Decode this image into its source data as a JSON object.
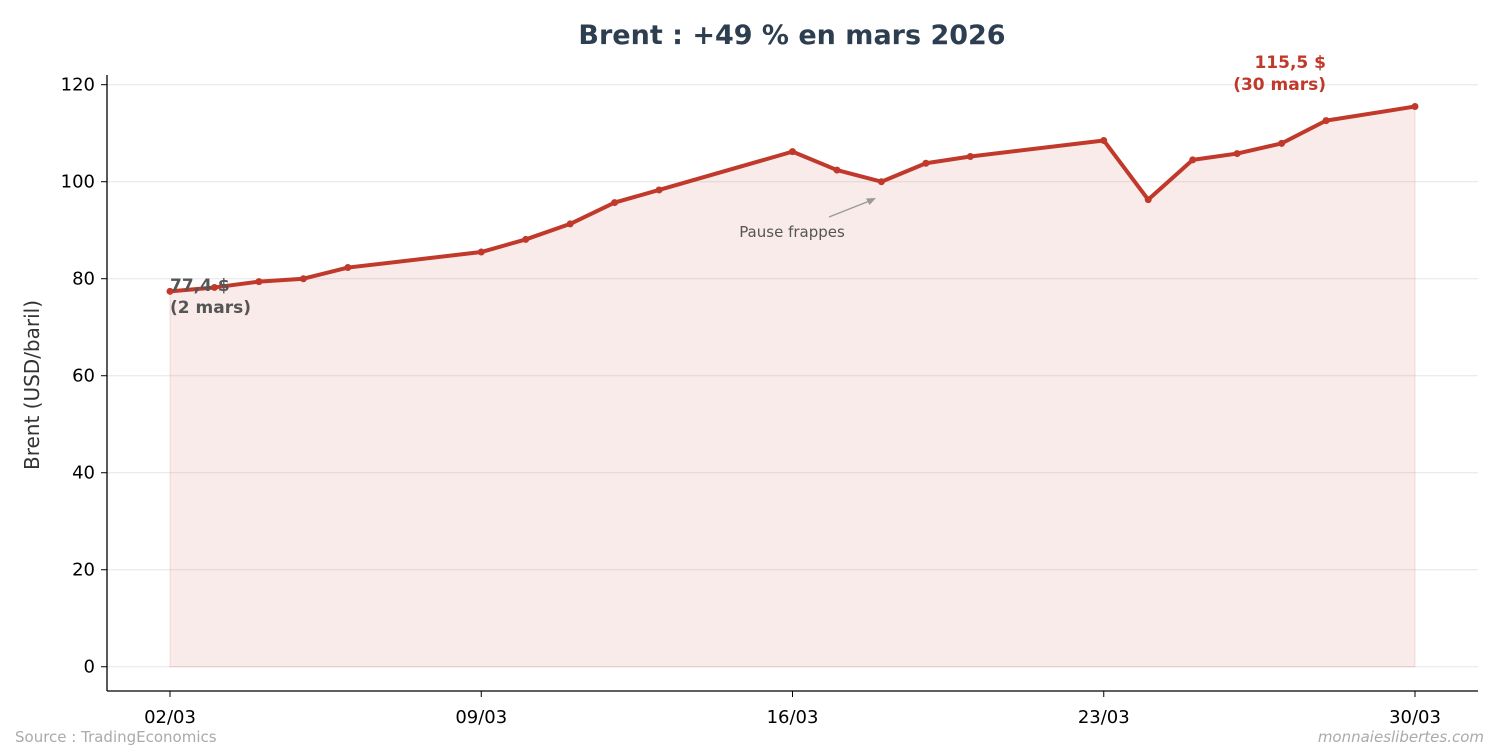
{
  "chart_data": {
    "type": "line",
    "title": "Brent : +49 % en mars 2026",
    "ylabel": "Brent (USD/baril)",
    "xlabel": "",
    "xlim": [
      "2026-03-02",
      "2026-03-30"
    ],
    "ylim": [
      -5,
      122
    ],
    "yticks": [
      0,
      20,
      40,
      60,
      80,
      100,
      120
    ],
    "xticks": [
      "2026-03-02",
      "2026-03-09",
      "2026-03-16",
      "2026-03-23",
      "2026-03-30"
    ],
    "xtick_labels": [
      "02/03",
      "09/03",
      "16/03",
      "23/03",
      "30/03"
    ],
    "grid": "horizontal",
    "fill_under": true,
    "series": [
      {
        "color": "#c0392b",
        "x": [
          "2026-03-02",
          "2026-03-03",
          "2026-03-04",
          "2026-03-05",
          "2026-03-06",
          "2026-03-09",
          "2026-03-10",
          "2026-03-11",
          "2026-03-12",
          "2026-03-13",
          "2026-03-16",
          "2026-03-17",
          "2026-03-18",
          "2026-03-19",
          "2026-03-20",
          "2026-03-23",
          "2026-03-24",
          "2026-03-25",
          "2026-03-26",
          "2026-03-27",
          "2026-03-28",
          "2026-03-30"
        ],
        "y": [
          77.4,
          78.2,
          79.4,
          80.0,
          82.3,
          85.5,
          88.1,
          91.3,
          95.7,
          98.3,
          106.2,
          102.4,
          100.0,
          103.8,
          105.2,
          108.5,
          96.3,
          104.5,
          105.8,
          107.9,
          112.6,
          115.5
        ]
      }
    ],
    "annotations": {
      "start": {
        "line1": "77,4 $",
        "line2": "(2 mars)"
      },
      "end": {
        "line1": "115,5 $",
        "line2": "(30 mars)"
      },
      "pause": {
        "text": "Pause frappes",
        "target_x": "2026-03-18",
        "target_y": 96
      }
    }
  },
  "footer": {
    "source": "Source : TradingEconomics",
    "site": "monnaieslibertes.com"
  }
}
